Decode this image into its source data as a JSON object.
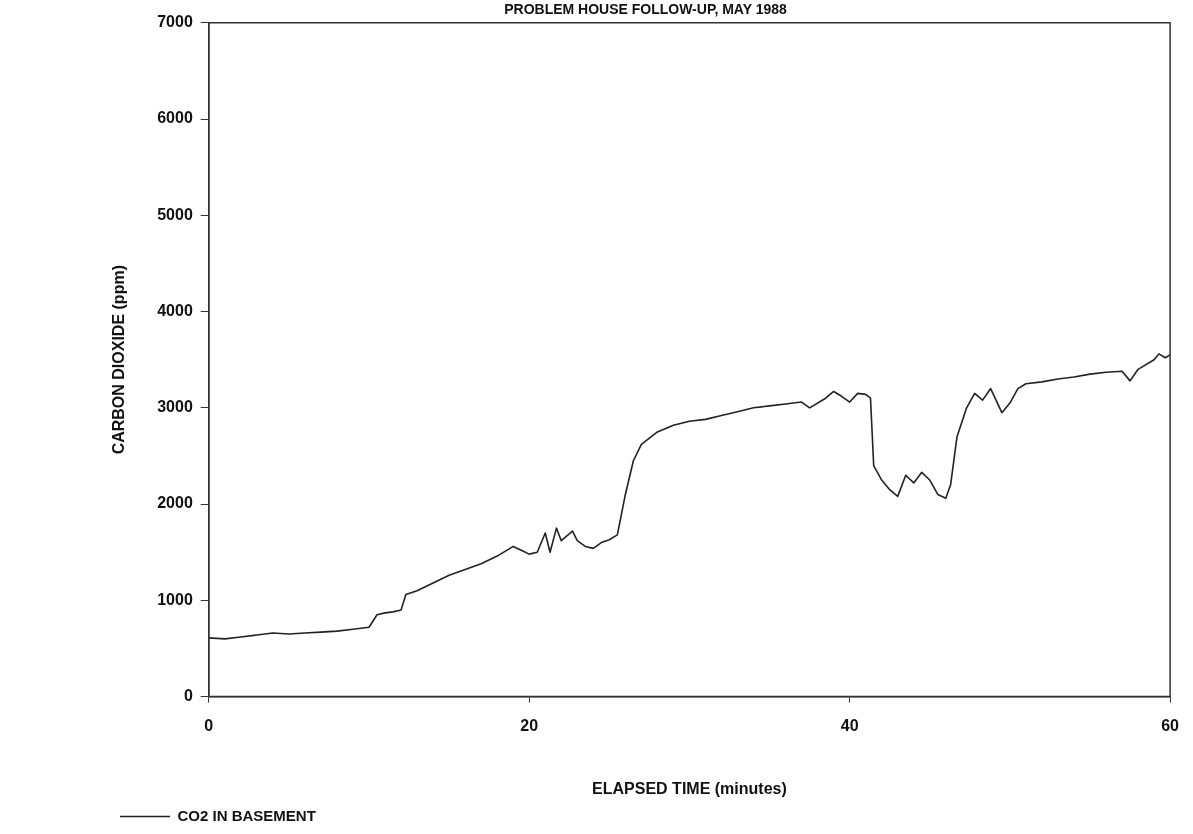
{
  "chart_data": {
    "type": "line",
    "title": "PROBLEM HOUSE FOLLOW-UP, MAY 1988",
    "xlabel": "ELAPSED TIME (minutes)",
    "ylabel": "CARBON DIOXIDE (ppm)",
    "xlim": [
      0,
      60
    ],
    "xticks": [
      0,
      20,
      40,
      60
    ],
    "ylim": [
      0,
      7000
    ],
    "yticks": [
      0,
      1000,
      2000,
      3000,
      4000,
      5000,
      6000,
      7000
    ],
    "grid": false,
    "legend": "bottom",
    "marker": "none",
    "line_style": "solid",
    "series": [
      {
        "name": "CO2 IN BASEMENT",
        "color": "#222222",
        "x": [
          0,
          1,
          2,
          3,
          4,
          5,
          6,
          7,
          8,
          9,
          10,
          10.5,
          11,
          11.5,
          12,
          12.3,
          13,
          14,
          15,
          16,
          17,
          18,
          19,
          19.5,
          20,
          20.5,
          21,
          21.3,
          21.7,
          22,
          22.7,
          23,
          23.5,
          24,
          24.5,
          25,
          25.5,
          26,
          26.5,
          27,
          28,
          29,
          30,
          31,
          32,
          33,
          34,
          35,
          36,
          37,
          37.5,
          38.5,
          39,
          39.5,
          40,
          40.5,
          41,
          41.3,
          41.5,
          42,
          42.5,
          43,
          43.5,
          44,
          44.5,
          45,
          45.5,
          46,
          46.3,
          46.7,
          47.3,
          47.8,
          48.3,
          48.8,
          49.5,
          50,
          50.5,
          51,
          52,
          53,
          54,
          55,
          56,
          57,
          57.5,
          58,
          59,
          59.3,
          59.7,
          60
        ],
        "values": [
          610,
          600,
          620,
          640,
          660,
          650,
          660,
          670,
          680,
          700,
          720,
          850,
          870,
          880,
          900,
          1060,
          1100,
          1180,
          1260,
          1320,
          1380,
          1460,
          1560,
          1520,
          1480,
          1500,
          1700,
          1500,
          1750,
          1620,
          1720,
          1620,
          1560,
          1540,
          1600,
          1630,
          1680,
          2100,
          2450,
          2620,
          2750,
          2820,
          2860,
          2880,
          2920,
          2960,
          3000,
          3020,
          3040,
          3060,
          3000,
          3100,
          3170,
          3120,
          3060,
          3150,
          3140,
          3100,
          2400,
          2250,
          2150,
          2080,
          2300,
          2220,
          2330,
          2250,
          2100,
          2060,
          2200,
          2700,
          3000,
          3150,
          3080,
          3200,
          2950,
          3050,
          3200,
          3250,
          3270,
          3300,
          3320,
          3350,
          3370,
          3380,
          3280,
          3400,
          3500,
          3560,
          3520,
          3550
        ]
      }
    ]
  }
}
